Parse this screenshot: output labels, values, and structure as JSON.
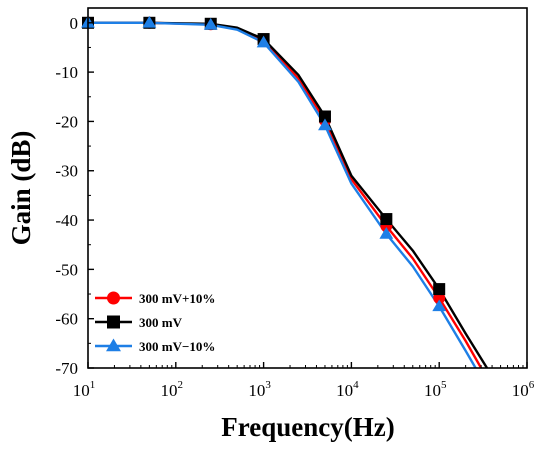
{
  "chart_data": {
    "type": "line",
    "xlabel": "Frequency(Hz)",
    "ylabel": "Gain (dB)",
    "x_scale": "log",
    "xlim": [
      10,
      1000000
    ],
    "ylim": [
      -70,
      3
    ],
    "x_ticks": [
      {
        "base": "10",
        "exp": "1",
        "value": 10
      },
      {
        "base": "10",
        "exp": "2",
        "value": 100
      },
      {
        "base": "10",
        "exp": "3",
        "value": 1000
      },
      {
        "base": "10",
        "exp": "4",
        "value": 10000
      },
      {
        "base": "10",
        "exp": "5",
        "value": 100000
      },
      {
        "base": "10",
        "exp": "6",
        "value": 1000000
      }
    ],
    "y_ticks": [
      {
        "label": "0",
        "value": 0
      },
      {
        "label": "-10",
        "value": -10
      },
      {
        "label": "-20",
        "value": -20
      },
      {
        "label": "-30",
        "value": -30
      },
      {
        "label": "-40",
        "value": -40
      },
      {
        "label": "-50",
        "value": -50
      },
      {
        "label": "-60",
        "value": -60
      },
      {
        "label": "-70",
        "value": -70
      }
    ],
    "grid": false,
    "legend_position": "bottom-left",
    "series": [
      {
        "name": "300 mV+10%",
        "color": "#ff0000",
        "marker": "circle",
        "line_x": [
          10,
          50,
          250,
          500,
          1000,
          2500,
          5000,
          10000,
          25000,
          50000,
          100000,
          200000,
          300000
        ],
        "line_y": [
          0,
          0,
          -0.3,
          -1.2,
          -3.6,
          -11.3,
          -19.8,
          -31.7,
          -41.2,
          -47.8,
          -55.8,
          -64.5,
          -70
        ],
        "marker_x": [
          10,
          50,
          250,
          1000,
          5000,
          25000,
          100000
        ],
        "marker_y": [
          0,
          0,
          -0.3,
          -3.6,
          -19.8,
          -41.2,
          -55.8
        ]
      },
      {
        "name": "300 mV",
        "color": "#000000",
        "marker": "square",
        "line_x": [
          10,
          50,
          250,
          500,
          1000,
          2500,
          5000,
          10000,
          25000,
          50000,
          100000,
          200000,
          350000
        ],
        "line_y": [
          0,
          0,
          -0.2,
          -1.0,
          -3.3,
          -10.6,
          -19.0,
          -31.0,
          -39.8,
          -46.2,
          -54.0,
          -63.0,
          -70
        ],
        "marker_x": [
          10,
          50,
          250,
          1000,
          5000,
          25000,
          100000
        ],
        "marker_y": [
          0,
          0,
          -0.2,
          -3.3,
          -19.0,
          -39.8,
          -54.0
        ]
      },
      {
        "name": "300 mV−10%",
        "color": "#1e7fe6",
        "marker": "triangle",
        "line_x": [
          10,
          50,
          250,
          500,
          1000,
          2500,
          5000,
          10000,
          25000,
          50000,
          100000,
          200000,
          260000
        ],
        "line_y": [
          0,
          0,
          -0.4,
          -1.4,
          -4.0,
          -12.0,
          -20.8,
          -32.6,
          -42.8,
          -49.4,
          -57.5,
          -66.5,
          -70
        ],
        "marker_x": [
          10,
          50,
          250,
          1000,
          5000,
          25000,
          100000
        ],
        "marker_y": [
          0,
          0,
          -0.4,
          -4.0,
          -20.8,
          -42.8,
          -57.5
        ]
      }
    ]
  }
}
